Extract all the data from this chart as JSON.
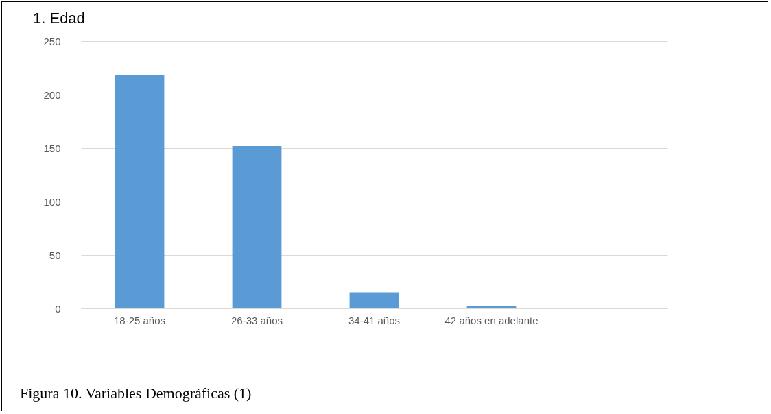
{
  "chart_data": {
    "type": "bar",
    "title": "1. Edad",
    "categories": [
      "18-25 años",
      "26-33 años",
      "34-41 años",
      "42 años en adelante",
      null
    ],
    "values": [
      218,
      152,
      15,
      2,
      null
    ],
    "color": "#5b9bd5",
    "ylim": [
      0,
      250
    ],
    "yticks": [
      0,
      50,
      100,
      150,
      200,
      250
    ],
    "grid": "y",
    "annotations": [
      "Figura 10. Variables Demográficas (1)"
    ]
  }
}
